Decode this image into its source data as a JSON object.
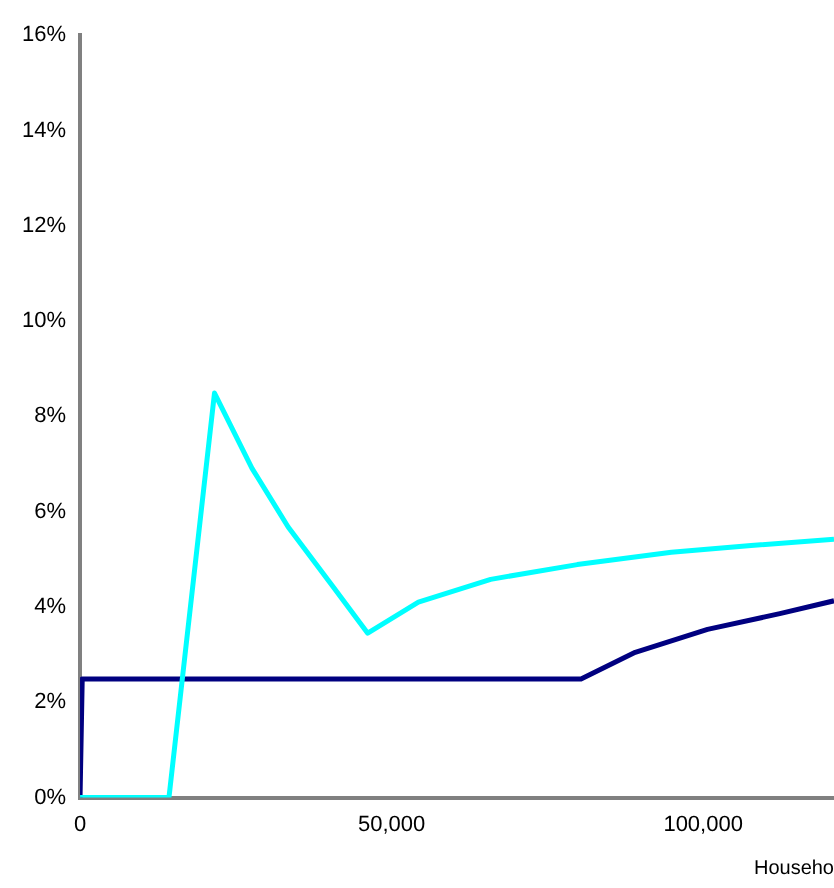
{
  "chart_data": {
    "type": "line",
    "xlabel": "Househo",
    "xlim": [
      0,
      121000
    ],
    "ylim": [
      0,
      16
    ],
    "xticks": [
      {
        "value": 0,
        "label": "0"
      },
      {
        "value": 50000,
        "label": "50,000"
      },
      {
        "value": 100000,
        "label": "100,000"
      }
    ],
    "yticks": [
      {
        "value": 0,
        "label": "0%"
      },
      {
        "value": 2,
        "label": "2%"
      },
      {
        "value": 4,
        "label": "4%"
      },
      {
        "value": 6,
        "label": "6%"
      },
      {
        "value": 8,
        "label": "8%"
      },
      {
        "value": 10,
        "label": "10%"
      },
      {
        "value": 12,
        "label": "12%"
      },
      {
        "value": 14,
        "label": "14%"
      },
      {
        "value": 16,
        "label": "16%"
      }
    ],
    "grid": false,
    "legend": false,
    "marker": "none",
    "line_style": "solid",
    "series": [
      {
        "color": "#00ffff",
        "x": [
          0,
          14270,
          21580,
          27600,
          33400,
          40400,
          46170,
          54300,
          65900,
          79800,
          94900,
          107700,
          121000
        ],
        "values": [
          0,
          0,
          8.49,
          6.91,
          5.68,
          4.46,
          3.45,
          4.1,
          4.58,
          4.89,
          5.15,
          5.29,
          5.42
        ]
      },
      {
        "color": "#000080",
        "x": [
          0,
          350,
          80400,
          89100,
          100700,
          112300,
          121000
        ],
        "values": [
          0,
          2.49,
          2.49,
          3.05,
          3.53,
          3.86,
          4.13
        ]
      }
    ]
  }
}
